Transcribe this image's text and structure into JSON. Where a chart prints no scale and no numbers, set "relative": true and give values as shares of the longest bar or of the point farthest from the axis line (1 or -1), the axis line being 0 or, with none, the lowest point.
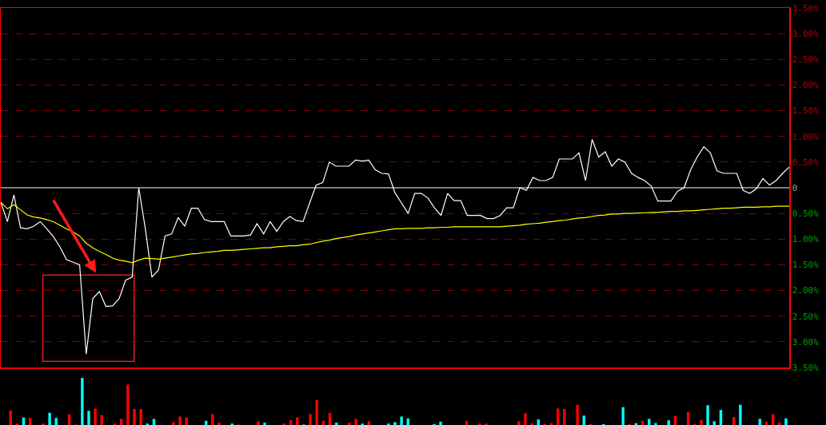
{
  "chart_data": [
    {
      "type": "line",
      "categories": [
        null,
        null,
        null,
        null,
        null,
        null,
        null,
        null,
        null,
        null,
        null,
        null,
        null,
        null,
        null,
        null,
        null,
        null,
        null,
        null,
        null,
        null,
        null,
        null,
        null,
        null,
        null,
        null,
        null,
        null,
        null,
        null,
        null,
        null,
        null,
        null,
        null,
        null,
        null,
        null,
        null,
        null,
        null,
        null,
        null,
        null,
        null,
        null,
        null,
        null,
        null,
        null,
        null,
        null,
        null,
        null,
        null,
        null,
        null,
        null,
        null,
        null,
        null,
        null,
        null,
        null,
        null,
        null,
        null,
        null,
        null,
        null,
        null,
        null,
        null,
        null,
        null,
        null,
        null,
        null,
        null,
        null,
        null,
        null,
        null,
        null,
        null,
        null,
        null,
        null,
        null,
        null,
        null,
        null,
        null,
        null,
        null,
        null,
        null,
        null,
        null,
        null,
        null,
        null,
        null,
        null,
        null,
        null,
        null,
        null,
        null,
        null,
        null,
        null,
        null,
        null,
        null,
        null,
        null,
        null,
        null
      ],
      "series": [
        {
          "color": "#ffffff",
          "values": [
            -0.28,
            -0.66,
            -0.14,
            -0.78,
            -0.8,
            -0.75,
            -0.66,
            -0.8,
            -0.95,
            -1.15,
            -1.4,
            -1.45,
            -1.5,
            -3.24,
            -2.16,
            -2.02,
            -2.31,
            -2.3,
            -2.16,
            -1.8,
            -1.74,
            0,
            -0.8,
            -1.74,
            -1.6,
            -0.94,
            -0.9,
            -0.58,
            -0.75,
            -0.4,
            -0.4,
            -0.62,
            -0.66,
            -0.66,
            -0.66,
            -0.94,
            -0.94,
            -0.94,
            -0.92,
            -0.7,
            -0.9,
            -0.66,
            -0.85,
            -0.66,
            -0.56,
            -0.64,
            -0.66,
            -0.3,
            0.05,
            0.1,
            0.5,
            0.42,
            0.42,
            0.42,
            0.54,
            0.52,
            0.54,
            0.35,
            0.28,
            0.27,
            -0.1,
            -0.3,
            -0.5,
            -0.11,
            -0.11,
            -0.2,
            -0.39,
            -0.54,
            -0.11,
            -0.25,
            -0.25,
            -0.54,
            -0.54,
            -0.54,
            -0.6,
            -0.6,
            -0.54,
            -0.39,
            -0.39,
            0,
            -0.05,
            0.2,
            0.14,
            0.14,
            0.2,
            0.56,
            0.56,
            0.56,
            0.68,
            0.14,
            0.94,
            0.6,
            0.7,
            0.42,
            0.56,
            0.5,
            0.28,
            0.2,
            0.14,
            0.03,
            -0.26,
            -0.26,
            -0.26,
            -0.07,
            0,
            0.35,
            0.6,
            0.8,
            0.68,
            0.33,
            0.28,
            0.28,
            0.28,
            -0.05,
            -0.11,
            -0.02,
            0.18,
            0.05,
            0.14,
            0.28,
            0.4
          ]
        },
        {
          "color": "#ffff00",
          "values": [
            -0.28,
            -0.41,
            -0.33,
            -0.43,
            -0.53,
            -0.57,
            -0.59,
            -0.62,
            -0.66,
            -0.73,
            -0.8,
            -0.86,
            -0.94,
            -1.08,
            -1.17,
            -1.24,
            -1.3,
            -1.37,
            -1.41,
            -1.43,
            -1.46,
            -1.41,
            -1.37,
            -1.38,
            -1.39,
            -1.37,
            -1.35,
            -1.33,
            -1.31,
            -1.29,
            -1.28,
            -1.26,
            -1.25,
            -1.24,
            -1.22,
            -1.22,
            -1.21,
            -1.2,
            -1.19,
            -1.18,
            -1.17,
            -1.17,
            -1.15,
            -1.14,
            -1.13,
            -1.13,
            -1.11,
            -1.1,
            -1.07,
            -1.04,
            -1.02,
            -0.99,
            -0.97,
            -0.95,
            -0.92,
            -0.9,
            -0.88,
            -0.86,
            -0.84,
            -0.82,
            -0.8,
            -0.8,
            -0.79,
            -0.79,
            -0.79,
            -0.78,
            -0.78,
            -0.77,
            -0.77,
            -0.76,
            -0.76,
            -0.76,
            -0.76,
            -0.76,
            -0.76,
            -0.76,
            -0.76,
            -0.75,
            -0.74,
            -0.73,
            -0.71,
            -0.7,
            -0.69,
            -0.67,
            -0.66,
            -0.64,
            -0.63,
            -0.61,
            -0.59,
            -0.58,
            -0.56,
            -0.54,
            -0.53,
            -0.51,
            -0.51,
            -0.5,
            -0.5,
            -0.49,
            -0.49,
            -0.48,
            -0.48,
            -0.47,
            -0.46,
            -0.46,
            -0.45,
            -0.45,
            -0.44,
            -0.43,
            -0.42,
            -0.41,
            -0.4,
            -0.4,
            -0.39,
            -0.38,
            -0.38,
            -0.38,
            -0.37,
            -0.37,
            -0.36,
            -0.36,
            -0.36
          ]
        }
      ],
      "ylim": [
        -3.5,
        3.5
      ],
      "yticks": [
        {
          "value": -3.5,
          "label": "3.50%"
        },
        {
          "value": -3,
          "label": "3.00%"
        },
        {
          "value": -2.5,
          "label": "2.50%"
        },
        {
          "value": -2,
          "label": "2.00%"
        },
        {
          "value": -1.5,
          "label": "1.50%"
        },
        {
          "value": -1,
          "label": "1.00%"
        },
        {
          "value": -0.5,
          "label": "0.50%"
        },
        0,
        {
          "value": 0.5,
          "label": "0.50%"
        },
        {
          "value": 1,
          "label": "1.00%"
        },
        {
          "value": 1.5,
          "label": "1.50%"
        },
        {
          "value": 2,
          "label": "2.00%"
        },
        {
          "value": 2.5,
          "label": "2.50%"
        },
        {
          "value": 3,
          "label": "3.00%"
        },
        {
          "value": 3.5,
          "label": "3.50%"
        }
      ],
      "grid": "y",
      "tick_labels": "y"
    },
    {
      "type": "bar",
      "relative": true,
      "categories": [
        null,
        null,
        null,
        null,
        null,
        null,
        null,
        null,
        null,
        null,
        null,
        null,
        null,
        null,
        null,
        null,
        null,
        null,
        null,
        null,
        null,
        null,
        null,
        null,
        null,
        null,
        null,
        null,
        null,
        null,
        null,
        null,
        null,
        null,
        null,
        null,
        null,
        null,
        null,
        null,
        null,
        null,
        null,
        null,
        null,
        null,
        null,
        null,
        null,
        null,
        null,
        null,
        null,
        null,
        null,
        null,
        null,
        null,
        null,
        null,
        null,
        null,
        null,
        null,
        null,
        null,
        null,
        null,
        null,
        null,
        null,
        null,
        null,
        null,
        null,
        null,
        null,
        null,
        null,
        null,
        null,
        null,
        null,
        null,
        null,
        null,
        null,
        null,
        null,
        null,
        null,
        null,
        null,
        null,
        null,
        null,
        null,
        null,
        null,
        null,
        null,
        null,
        null,
        null,
        null,
        null,
        null,
        null,
        null,
        null,
        null,
        null,
        null,
        null,
        null,
        null,
        null,
        null,
        null,
        null,
        null
      ],
      "values": [
        0,
        0.31,
        0.03,
        0.16,
        0.15,
        0,
        0.03,
        0.26,
        0.15,
        0,
        0.23,
        0.01,
        1,
        0.3,
        0.35,
        0.21,
        0,
        0.03,
        0.13,
        0.86,
        0.34,
        0.34,
        0.03,
        0.13,
        0,
        0,
        0.06,
        0.18,
        0.16,
        0,
        0,
        0.09,
        0.23,
        0.05,
        0,
        0.03,
        0.01,
        0,
        0,
        0.08,
        0.05,
        0,
        0,
        0.03,
        0.1,
        0.16,
        0.01,
        0.23,
        0.53,
        0.09,
        0.26,
        0.05,
        0,
        0.05,
        0.13,
        0.03,
        0.08,
        0,
        0,
        0.03,
        0.06,
        0.18,
        0.14,
        0,
        0,
        0,
        0.02,
        0.07,
        0,
        0,
        0,
        0.09,
        0,
        0.03,
        0.03,
        0,
        0,
        0,
        0,
        0.08,
        0.25,
        0.04,
        0.12,
        0.02,
        0.04,
        0.35,
        0.34,
        0,
        0.43,
        0.2,
        0.02,
        0,
        0.02,
        0,
        0,
        0.38,
        0.02,
        0.04,
        0.09,
        0.13,
        0.04,
        0,
        0.1,
        0.19,
        0,
        0.28,
        0.02,
        0.11,
        0.42,
        0.08,
        0.32,
        0,
        0.17,
        0.43,
        0,
        0,
        0.13,
        0.07,
        0.23,
        0.05,
        0.14
      ],
      "colors": [
        "#ff0000",
        "#ff0000",
        "#ff0000",
        "#00ffff",
        "#ff0000",
        "#ff0000",
        "#ff0000",
        "#00ffff",
        "#00ffff",
        "#ff0000",
        "#ff0000",
        "#ff0000",
        "#00ffff",
        "#00ffff",
        "#ff0000",
        "#ff0000",
        "#ff0000",
        "#ff0000",
        "#ff0000",
        "#ff0000",
        "#ff0000",
        "#ff0000",
        "#00ffff",
        "#00ffff",
        "#ff0000",
        "#ff0000",
        "#ff0000",
        "#ff0000",
        "#ff0000",
        "#ff0000",
        "#ff0000",
        "#00ffff",
        "#ff0000",
        "#ff0000",
        "#ff0000",
        "#00ffff",
        "#ff0000",
        "#ff0000",
        "#ff0000",
        "#ff0000",
        "#00ffff",
        "#ff0000",
        "#ff0000",
        "#ff0000",
        "#ff0000",
        "#ff0000",
        "#00ffff",
        "#ff0000",
        "#ff0000",
        "#ff0000",
        "#ff0000",
        "#00ffff",
        "#ff0000",
        "#ff0000",
        "#ff0000",
        "#00ffff",
        "#ff0000",
        "#ff0000",
        "#ff0000",
        "#00ffff",
        "#00ffff",
        "#00ffff",
        "#00ffff",
        "#ff0000",
        "#ff0000",
        "#ff0000",
        "#00ffff",
        "#00ffff",
        "#ff0000",
        "#ff0000",
        "#ff0000",
        "#ff0000",
        "#ff0000",
        "#ff0000",
        "#ff0000",
        "#ff0000",
        "#ff0000",
        "#ff0000",
        "#ff0000",
        "#ff0000",
        "#ff0000",
        "#ff0000",
        "#00ffff",
        "#ff0000",
        "#ff0000",
        "#ff0000",
        "#ff0000",
        "#ff0000",
        "#ff0000",
        "#00ffff",
        "#ff0000",
        "#ff0000",
        "#00ffff",
        "#ff0000",
        "#ff0000",
        "#00ffff",
        "#ff0000",
        "#00ffff",
        "#ff0000",
        "#00ffff",
        "#00ffff",
        "#ff0000",
        "#00ffff",
        "#ff0000",
        "#ff0000",
        "#ff0000",
        "#ff0000",
        "#ff0000",
        "#00ffff",
        "#00ffff",
        "#00ffff",
        "#ff0000",
        "#ff0000",
        "#00ffff",
        "#ff0000",
        "#ff0000",
        "#00ffff",
        "#ff0000",
        "#ff0000",
        "#ff0000",
        "#00ffff"
      ]
    }
  ]
}
